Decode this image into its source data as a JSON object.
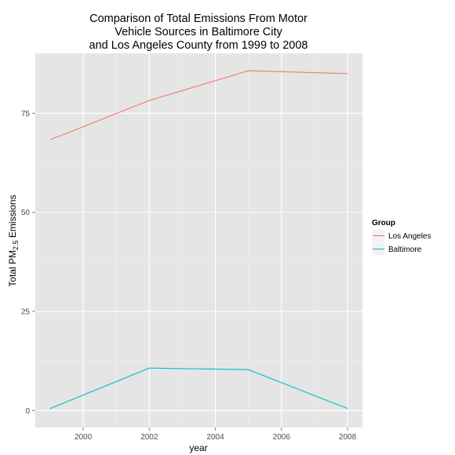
{
  "chart_data": {
    "type": "line",
    "title": [
      "Comparison of Total Emissions From Motor",
      "Vehicle Sources in Baltimore City",
      "and Los Angeles County from 1999 to 2008"
    ],
    "xlabel": "year",
    "ylabel": {
      "prefix": "Total PM",
      "subscript": "2.5",
      "suffix": " Emissions"
    },
    "x_ticks": [
      2000,
      2002,
      2004,
      2006,
      2008
    ],
    "y_ticks": [
      0,
      25,
      50,
      75
    ],
    "xlim": [
      1998.55,
      2008.45
    ],
    "ylim": [
      -4.3,
      90.1
    ],
    "grid": true,
    "legend": {
      "title": "Group",
      "position": "right"
    },
    "series": [
      {
        "name": "Los Angeles",
        "color": "#F8766D",
        "x": [
          1999,
          2002,
          2005,
          2008
        ],
        "y": [
          68.3,
          78.2,
          85.7,
          85.0
        ]
      },
      {
        "name": "Baltimore",
        "color": "#00BFC4",
        "x": [
          1999,
          2002,
          2005,
          2008
        ],
        "y": [
          0.5,
          10.7,
          10.3,
          0.5
        ]
      }
    ]
  }
}
